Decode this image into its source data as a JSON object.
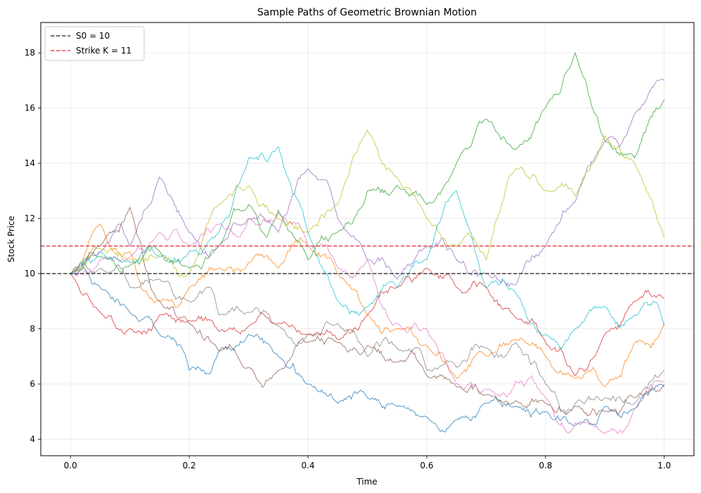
{
  "chart_data": {
    "type": "line",
    "title": "Sample Paths of Geometric Brownian Motion",
    "xlabel": "Time",
    "ylabel": "Stock Price",
    "xlim": [
      -0.05,
      1.05
    ],
    "ylim": [
      3.4,
      19.1
    ],
    "xticks": [
      0.0,
      0.2,
      0.4,
      0.6,
      0.8,
      1.0
    ],
    "xtick_labels": [
      "0.0",
      "0.2",
      "0.4",
      "0.6",
      "0.8",
      "1.0"
    ],
    "yticks": [
      4,
      6,
      8,
      10,
      12,
      14,
      16,
      18
    ],
    "ytick_labels": [
      "4",
      "6",
      "8",
      "10",
      "12",
      "14",
      "16",
      "18"
    ],
    "grid": true,
    "legend_position": "top-left",
    "reference_lines": [
      {
        "label": "S0 = 10",
        "y": 10,
        "color": "#404040",
        "style": "dashed"
      },
      {
        "label": "Strike K = 11",
        "y": 11,
        "color": "#e84a4a",
        "style": "dashed"
      }
    ],
    "series_colors": [
      "#1f77b4",
      "#ff7f0e",
      "#2ca02c",
      "#d62728",
      "#9467bd",
      "#8c564b",
      "#e377c2",
      "#7f7f7f",
      "#bcbd22",
      "#17becf"
    ],
    "series": [
      {
        "color": "#1f77b4",
        "x": [
          0,
          0.05,
          0.1,
          0.15,
          0.2,
          0.25,
          0.3,
          0.35,
          0.4,
          0.45,
          0.5,
          0.55,
          0.6,
          0.65,
          0.7,
          0.75,
          0.8,
          0.85,
          0.9,
          0.95,
          1.0
        ],
        "y": [
          10,
          9.5,
          8.6,
          7.8,
          6.5,
          7.2,
          7.8,
          7.0,
          6.0,
          5.3,
          5.5,
          5.2,
          4.8,
          4.7,
          5.3,
          5.2,
          5.0,
          4.5,
          5.2,
          5.1,
          5.9
        ]
      },
      {
        "color": "#ff7f0e",
        "x": [
          0,
          0.05,
          0.1,
          0.15,
          0.2,
          0.25,
          0.3,
          0.35,
          0.4,
          0.45,
          0.5,
          0.55,
          0.6,
          0.65,
          0.7,
          0.75,
          0.8,
          0.85,
          0.9,
          0.95,
          1.0
        ],
        "y": [
          10,
          11.8,
          10.8,
          9.0,
          9.5,
          10.2,
          10.4,
          10.2,
          11.0,
          10.0,
          8.5,
          8.0,
          7.4,
          6.2,
          7.0,
          7.6,
          7.0,
          6.2,
          5.9,
          7.5,
          8.2
        ]
      },
      {
        "color": "#2ca02c",
        "x": [
          0,
          0.05,
          0.1,
          0.15,
          0.2,
          0.25,
          0.3,
          0.35,
          0.4,
          0.45,
          0.5,
          0.55,
          0.6,
          0.65,
          0.7,
          0.75,
          0.8,
          0.85,
          0.9,
          0.95,
          1.0
        ],
        "y": [
          10,
          10.6,
          10.3,
          10.8,
          10.2,
          11.0,
          12.5,
          12.3,
          10.5,
          11.5,
          13.0,
          13.2,
          12.5,
          14.0,
          15.6,
          14.5,
          16.0,
          18.0,
          14.8,
          14.2,
          16.3
        ]
      },
      {
        "color": "#d62728",
        "x": [
          0,
          0.05,
          0.1,
          0.15,
          0.2,
          0.25,
          0.3,
          0.35,
          0.4,
          0.45,
          0.5,
          0.55,
          0.6,
          0.65,
          0.7,
          0.75,
          0.8,
          0.85,
          0.9,
          0.95,
          1.0
        ],
        "y": [
          10,
          8.6,
          8.0,
          8.5,
          8.3,
          7.9,
          8.1,
          8.2,
          7.8,
          7.6,
          8.5,
          9.5,
          10.2,
          9.5,
          9.5,
          8.4,
          7.5,
          6.3,
          7.8,
          9.0,
          9.1
        ]
      },
      {
        "color": "#9467bd",
        "x": [
          0,
          0.05,
          0.1,
          0.15,
          0.2,
          0.25,
          0.3,
          0.35,
          0.4,
          0.45,
          0.5,
          0.55,
          0.6,
          0.65,
          0.7,
          0.75,
          0.8,
          0.85,
          0.9,
          0.95,
          1.0
        ],
        "y": [
          10,
          10.8,
          11.0,
          13.5,
          11.5,
          11.0,
          12.0,
          11.5,
          13.8,
          12.0,
          10.5,
          9.8,
          11.0,
          10.5,
          10.0,
          9.6,
          11.0,
          12.6,
          14.8,
          15.8,
          17.0
        ]
      },
      {
        "color": "#8c564b",
        "x": [
          0,
          0.05,
          0.1,
          0.15,
          0.2,
          0.25,
          0.3,
          0.35,
          0.4,
          0.45,
          0.5,
          0.55,
          0.6,
          0.65,
          0.7,
          0.75,
          0.8,
          0.85,
          0.9,
          0.95,
          1.0
        ],
        "y": [
          10,
          11.0,
          12.4,
          9.0,
          8.2,
          7.2,
          6.6,
          6.5,
          7.5,
          7.5,
          7.4,
          6.8,
          6.3,
          5.9,
          5.6,
          5.4,
          5.3,
          5.2,
          5.0,
          5.5,
          6.0
        ]
      },
      {
        "color": "#e377c2",
        "x": [
          0,
          0.05,
          0.1,
          0.15,
          0.2,
          0.25,
          0.3,
          0.35,
          0.4,
          0.45,
          0.5,
          0.55,
          0.6,
          0.65,
          0.7,
          0.75,
          0.8,
          0.85,
          0.9,
          0.95,
          1.0
        ],
        "y": [
          10,
          10.5,
          10.6,
          11.5,
          11.0,
          11.8,
          12.0,
          12.2,
          11.0,
          10.2,
          10.5,
          8.2,
          8.0,
          6.0,
          5.8,
          6.1,
          5.5,
          4.6,
          4.2,
          5.1,
          6.1
        ]
      },
      {
        "color": "#7f7f7f",
        "x": [
          0,
          0.05,
          0.1,
          0.15,
          0.2,
          0.25,
          0.3,
          0.35,
          0.4,
          0.45,
          0.5,
          0.55,
          0.6,
          0.65,
          0.7,
          0.75,
          0.8,
          0.85,
          0.9,
          0.95,
          1.0
        ],
        "y": [
          10,
          10.2,
          9.5,
          9.8,
          9.0,
          8.5,
          8.6,
          8.1,
          7.8,
          8.2,
          7.0,
          7.3,
          6.5,
          6.6,
          7.3,
          7.5,
          6.0,
          5.3,
          5.5,
          5.3,
          6.5
        ]
      },
      {
        "color": "#bcbd22",
        "x": [
          0,
          0.05,
          0.1,
          0.15,
          0.2,
          0.25,
          0.3,
          0.35,
          0.4,
          0.45,
          0.5,
          0.55,
          0.6,
          0.65,
          0.7,
          0.75,
          0.8,
          0.85,
          0.9,
          0.95,
          1.0
        ],
        "y": [
          10,
          10.9,
          10.5,
          10.7,
          10.0,
          12.5,
          13.2,
          12.0,
          11.5,
          12.5,
          15.2,
          13.5,
          12.0,
          11.0,
          10.5,
          13.8,
          13.0,
          12.8,
          15.0,
          14.0,
          11.3
        ]
      },
      {
        "color": "#17becf",
        "x": [
          0,
          0.05,
          0.1,
          0.15,
          0.2,
          0.25,
          0.3,
          0.35,
          0.4,
          0.45,
          0.5,
          0.55,
          0.6,
          0.65,
          0.7,
          0.75,
          0.8,
          0.85,
          0.9,
          0.95,
          1.0
        ],
        "y": [
          10,
          10.8,
          10.4,
          10.6,
          10.8,
          11.5,
          14.2,
          14.6,
          11.5,
          9.0,
          8.8,
          9.5,
          10.5,
          13.0,
          9.5,
          9.3,
          7.8,
          8.0,
          8.8,
          8.5,
          8.1
        ]
      }
    ]
  }
}
